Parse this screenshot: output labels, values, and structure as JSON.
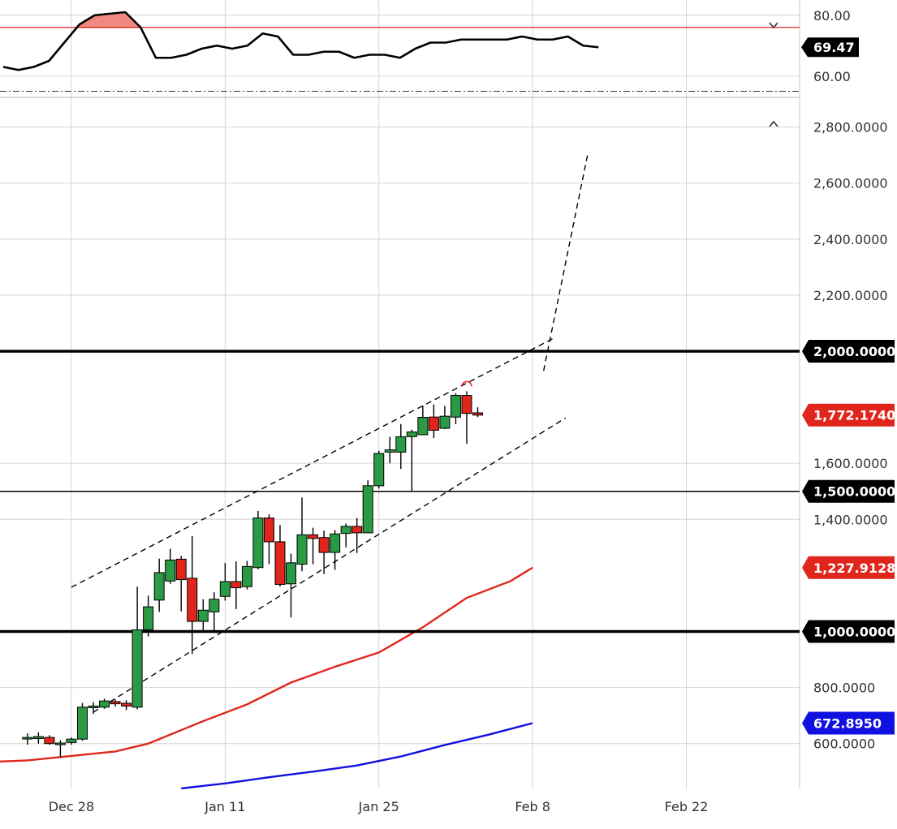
{
  "chart_data": [
    {
      "panel": "rsi",
      "type": "line",
      "ticks": [
        "80.00",
        "60.00"
      ],
      "tick_values": [
        80,
        60
      ],
      "ylim": [
        53,
        85
      ],
      "overbought_level": 76,
      "oversold_level": 55,
      "current_label": "69.47",
      "current_value": 69.47,
      "values": [
        63,
        62,
        63,
        65,
        71,
        77,
        80,
        80.5,
        81,
        76,
        66,
        66,
        67,
        69,
        70,
        69,
        70,
        74,
        73,
        67,
        67,
        68,
        68,
        66,
        67,
        67,
        66,
        69,
        71,
        71,
        72,
        72,
        72,
        72,
        73,
        72,
        72,
        73,
        70,
        69.47
      ],
      "series": [
        {
          "name": "",
          "color": "#000000"
        }
      ],
      "collapse_icon": "chevron-down-icon"
    },
    {
      "panel": "price",
      "type": "candlestick",
      "ylim": [
        440,
        2900
      ],
      "ticks": [
        "2,800.0000",
        "2,600.0000",
        "2,400.0000",
        "2,200.0000",
        "1,600.0000",
        "1,400.0000",
        "800.0000",
        "600.0000"
      ],
      "tick_values": [
        2800,
        2600,
        2400,
        2200,
        1600,
        1400,
        800,
        600
      ],
      "x_labels": [
        "Dec 28",
        "Jan 11",
        "Jan 25",
        "Feb 8",
        "Feb 22"
      ],
      "x_label_days": [
        4,
        18,
        32,
        46,
        60
      ],
      "xlim": [
        -2.5,
        67.5
      ],
      "candles": [
        {
          "d": 0,
          "o": 620,
          "h": 636,
          "l": 596,
          "c": 622
        },
        {
          "d": 1,
          "o": 618,
          "h": 640,
          "l": 600,
          "c": 625
        },
        {
          "d": 2,
          "o": 622,
          "h": 630,
          "l": 596,
          "c": 600
        },
        {
          "d": 3,
          "o": 598,
          "h": 612,
          "l": 552,
          "c": 602
        },
        {
          "d": 4,
          "o": 604,
          "h": 622,
          "l": 596,
          "c": 616
        },
        {
          "d": 5,
          "o": 616,
          "h": 745,
          "l": 610,
          "c": 730
        },
        {
          "d": 6,
          "o": 728,
          "h": 748,
          "l": 706,
          "c": 734
        },
        {
          "d": 7,
          "o": 730,
          "h": 760,
          "l": 724,
          "c": 752
        },
        {
          "d": 8,
          "o": 750,
          "h": 758,
          "l": 732,
          "c": 742
        },
        {
          "d": 9,
          "o": 744,
          "h": 755,
          "l": 720,
          "c": 734
        },
        {
          "d": 10,
          "o": 730,
          "h": 1160,
          "l": 722,
          "c": 1006
        },
        {
          "d": 11,
          "o": 1006,
          "h": 1128,
          "l": 982,
          "c": 1088
        },
        {
          "d": 12,
          "o": 1112,
          "h": 1260,
          "l": 1070,
          "c": 1210
        },
        {
          "d": 13,
          "o": 1180,
          "h": 1295,
          "l": 1170,
          "c": 1255
        },
        {
          "d": 14,
          "o": 1258,
          "h": 1270,
          "l": 1072,
          "c": 1185
        },
        {
          "d": 15,
          "o": 1190,
          "h": 1340,
          "l": 920,
          "c": 1036
        },
        {
          "d": 16,
          "o": 1036,
          "h": 1115,
          "l": 1000,
          "c": 1076
        },
        {
          "d": 17,
          "o": 1070,
          "h": 1140,
          "l": 995,
          "c": 1115
        },
        {
          "d": 18,
          "o": 1125,
          "h": 1245,
          "l": 1110,
          "c": 1178
        },
        {
          "d": 19,
          "o": 1178,
          "h": 1250,
          "l": 1080,
          "c": 1156
        },
        {
          "d": 20,
          "o": 1160,
          "h": 1252,
          "l": 1150,
          "c": 1232
        },
        {
          "d": 21,
          "o": 1228,
          "h": 1430,
          "l": 1222,
          "c": 1405
        },
        {
          "d": 22,
          "o": 1405,
          "h": 1418,
          "l": 1240,
          "c": 1320
        },
        {
          "d": 23,
          "o": 1320,
          "h": 1380,
          "l": 1160,
          "c": 1168
        },
        {
          "d": 24,
          "o": 1170,
          "h": 1278,
          "l": 1050,
          "c": 1245
        },
        {
          "d": 25,
          "o": 1240,
          "h": 1478,
          "l": 1215,
          "c": 1345
        },
        {
          "d": 26,
          "o": 1345,
          "h": 1370,
          "l": 1240,
          "c": 1332
        },
        {
          "d": 27,
          "o": 1335,
          "h": 1360,
          "l": 1205,
          "c": 1282
        },
        {
          "d": 28,
          "o": 1282,
          "h": 1362,
          "l": 1220,
          "c": 1348
        },
        {
          "d": 29,
          "o": 1350,
          "h": 1385,
          "l": 1300,
          "c": 1375
        },
        {
          "d": 30,
          "o": 1375,
          "h": 1405,
          "l": 1280,
          "c": 1352
        },
        {
          "d": 31,
          "o": 1352,
          "h": 1540,
          "l": 1350,
          "c": 1520
        },
        {
          "d": 32,
          "o": 1520,
          "h": 1645,
          "l": 1510,
          "c": 1635
        },
        {
          "d": 33,
          "o": 1640,
          "h": 1695,
          "l": 1600,
          "c": 1648
        },
        {
          "d": 34,
          "o": 1640,
          "h": 1740,
          "l": 1580,
          "c": 1695
        },
        {
          "d": 35,
          "o": 1695,
          "h": 1720,
          "l": 1500,
          "c": 1712
        },
        {
          "d": 36,
          "o": 1702,
          "h": 1806,
          "l": 1702,
          "c": 1764
        },
        {
          "d": 37,
          "o": 1765,
          "h": 1810,
          "l": 1690,
          "c": 1718
        },
        {
          "d": 38,
          "o": 1725,
          "h": 1805,
          "l": 1722,
          "c": 1768
        },
        {
          "d": 39,
          "o": 1765,
          "h": 1850,
          "l": 1740,
          "c": 1842
        },
        {
          "d": 40,
          "o": 1842,
          "h": 1857,
          "l": 1670,
          "c": 1778
        },
        {
          "d": 41,
          "o": 1780,
          "h": 1800,
          "l": 1765,
          "c": 1772
        }
      ],
      "moving_averages": [
        {
          "name": "",
          "color": "#e0261c",
          "points": [
            [
              -2.5,
              536
            ],
            [
              0,
              540
            ],
            [
              4,
              556
            ],
            [
              8,
              572
            ],
            [
              11,
              600
            ],
            [
              16,
              680
            ],
            [
              20,
              740
            ],
            [
              24,
              818
            ],
            [
              28,
              874
            ],
            [
              32,
              925
            ],
            [
              36,
              1015
            ],
            [
              40,
              1120
            ],
            [
              44,
              1180
            ],
            [
              46,
              1228
            ]
          ]
        },
        {
          "name": "",
          "color": "#1010e0",
          "points": [
            [
              14,
              440
            ],
            [
              18,
              458
            ],
            [
              22,
              480
            ],
            [
              26,
              500
            ],
            [
              30,
              522
            ],
            [
              34,
              554
            ],
            [
              38,
              595
            ],
            [
              42,
              632
            ],
            [
              46,
              673
            ]
          ]
        }
      ],
      "horizontal_levels": [
        {
          "value": 2000,
          "label": "2,000.0000",
          "weight": "heavy"
        },
        {
          "value": 1500,
          "label": "1,500.0000",
          "weight": "light"
        },
        {
          "value": 1000,
          "label": "1,000.0000",
          "weight": "heavy"
        }
      ],
      "trend_lines": [
        {
          "from": [
            4,
            1158
          ],
          "to": [
            48,
            2048
          ]
        },
        {
          "from": [
            6,
            712
          ],
          "to": [
            49,
            1762
          ]
        },
        {
          "from": [
            47,
            1930
          ],
          "to": [
            51,
            2700
          ]
        }
      ],
      "price_tags": [
        {
          "label": "1,772.1740",
          "value": 1772.174,
          "color": "#e0261c"
        },
        {
          "label": "1,227.9128",
          "value": 1227.9128,
          "color": "#e0261c"
        },
        {
          "label": "672.8950",
          "value": 672.895,
          "color": "#1010e0"
        }
      ],
      "colors": {
        "up": "#2a9a44",
        "down": "#e0261c",
        "grid": "#d4d4d4"
      },
      "collapse_icon": "chevron-up-icon"
    }
  ]
}
